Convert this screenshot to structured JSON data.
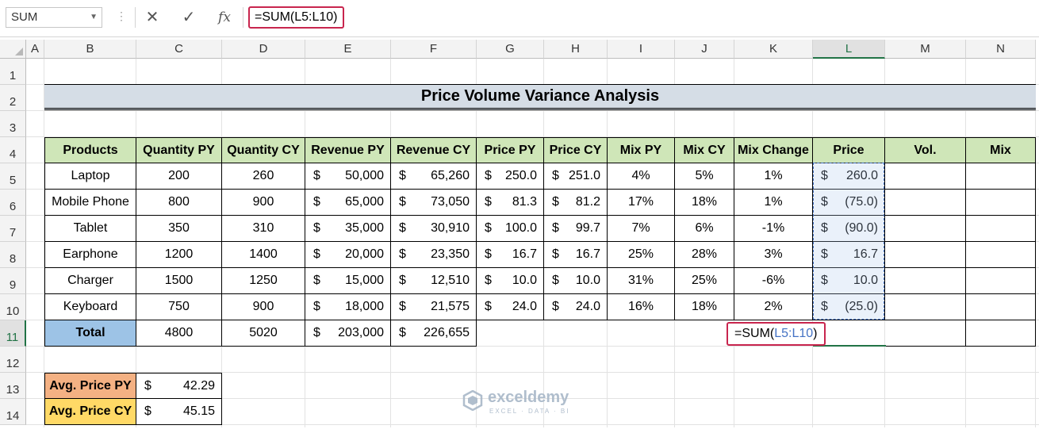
{
  "formula_bar": {
    "name_box": "SUM",
    "cancel_icon": "✕",
    "enter_icon": "✓",
    "fx_label": "fx",
    "formula": "=SUM(L5:L10)"
  },
  "columns": [
    "A",
    "B",
    "C",
    "D",
    "E",
    "F",
    "G",
    "H",
    "I",
    "J",
    "K",
    "L",
    "M",
    "N"
  ],
  "rows": [
    "1",
    "2",
    "3",
    "4",
    "5",
    "6",
    "7",
    "8",
    "9",
    "10",
    "11",
    "12",
    "13",
    "14"
  ],
  "active_column": "L",
  "active_row": "11",
  "sheet": {
    "title": "Price Volume Variance Analysis",
    "headers": [
      "Products",
      "Quantity PY",
      "Quantity CY",
      "Revenue PY",
      "Revenue CY",
      "Price PY",
      "Price CY",
      "Mix PY",
      "Mix CY",
      "Mix Change",
      "Price",
      "Vol.",
      "Mix"
    ],
    "currency_symbol": "$",
    "data_rows": [
      {
        "product": "Laptop",
        "qty_py": "200",
        "qty_cy": "260",
        "rev_py": "50,000",
        "rev_cy": "65,260",
        "price_py": "250.0",
        "price_cy": "251.0",
        "mix_py": "4%",
        "mix_cy": "5%",
        "mix_change": "1%",
        "price": "260.0"
      },
      {
        "product": "Mobile Phone",
        "qty_py": "800",
        "qty_cy": "900",
        "rev_py": "65,000",
        "rev_cy": "73,050",
        "price_py": "81.3",
        "price_cy": "81.2",
        "mix_py": "17%",
        "mix_cy": "18%",
        "mix_change": "1%",
        "price": "(75.0)"
      },
      {
        "product": "Tablet",
        "qty_py": "350",
        "qty_cy": "310",
        "rev_py": "35,000",
        "rev_cy": "30,910",
        "price_py": "100.0",
        "price_cy": "99.7",
        "mix_py": "7%",
        "mix_cy": "6%",
        "mix_change": "-1%",
        "price": "(90.0)"
      },
      {
        "product": "Earphone",
        "qty_py": "1200",
        "qty_cy": "1400",
        "rev_py": "20,000",
        "rev_cy": "23,350",
        "price_py": "16.7",
        "price_cy": "16.7",
        "mix_py": "25%",
        "mix_cy": "28%",
        "mix_change": "3%",
        "price": "16.7"
      },
      {
        "product": "Charger",
        "qty_py": "1500",
        "qty_cy": "1250",
        "rev_py": "15,000",
        "rev_cy": "12,510",
        "price_py": "10.0",
        "price_cy": "10.0",
        "mix_py": "31%",
        "mix_cy": "25%",
        "mix_change": "-6%",
        "price": "10.0"
      },
      {
        "product": "Keyboard",
        "qty_py": "750",
        "qty_cy": "900",
        "rev_py": "18,000",
        "rev_cy": "21,575",
        "price_py": "24.0",
        "price_cy": "24.0",
        "mix_py": "16%",
        "mix_cy": "18%",
        "mix_change": "2%",
        "price": "(25.0)"
      }
    ],
    "total": {
      "label": "Total",
      "qty_py": "4800",
      "qty_cy": "5020",
      "rev_py": "203,000",
      "rev_cy": "226,655"
    },
    "editing_formula": {
      "prefix": "=SUM(",
      "ref": "L5:L10",
      "suffix": ")"
    },
    "avg_py": {
      "label": "Avg. Price PY",
      "value": "42.29"
    },
    "avg_cy": {
      "label": "Avg. Price CY",
      "value": "45.15"
    }
  },
  "colors": {
    "header_green": "#cfe6b8",
    "title_band": "#d5dde6",
    "total_blue": "#9dc3e6",
    "avg_py_orange": "#f4b183",
    "avg_cy_yellow": "#ffd966",
    "highlight_red": "#c8254e",
    "excel_green": "#217346"
  },
  "watermark": {
    "name": "exceldemy",
    "tagline": "EXCEL · DATA · BI"
  }
}
